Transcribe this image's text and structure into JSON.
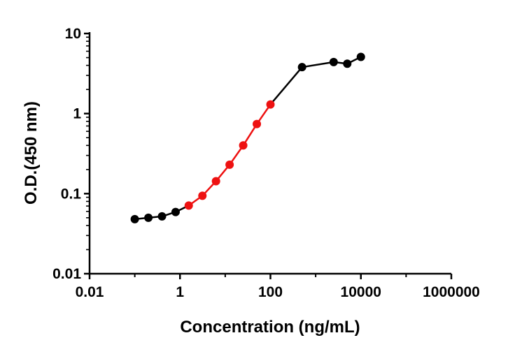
{
  "chart_data": {
    "type": "line",
    "title": "",
    "xlabel": "Concentration (ng/mL)",
    "ylabel": "O.D.(450 nm)",
    "xscale": "log",
    "yscale": "log",
    "xlim": [
      0.01,
      1000000
    ],
    "ylim": [
      0.01,
      10
    ],
    "x_ticks": [
      0.01,
      1,
      100,
      10000,
      1000000
    ],
    "x_tick_labels": [
      "0.01",
      "1",
      "100",
      "10000",
      "1000000"
    ],
    "y_ticks": [
      0.01,
      0.1,
      1,
      10
    ],
    "y_tick_labels": [
      "0.01",
      "0.1",
      "1",
      "10"
    ],
    "grid": false,
    "legend": "none",
    "series": [
      {
        "color": "#000000",
        "points": [
          {
            "x": 0.1,
            "y": 0.048
          },
          {
            "x": 0.2,
            "y": 0.05
          },
          {
            "x": 0.4,
            "y": 0.052
          },
          {
            "x": 0.8,
            "y": 0.059
          },
          {
            "x": 500,
            "y": 3.8
          },
          {
            "x": 2500,
            "y": 4.4
          },
          {
            "x": 5000,
            "y": 4.2
          },
          {
            "x": 10000,
            "y": 5.1
          }
        ]
      },
      {
        "color": "#ee1111",
        "points": [
          {
            "x": 1.56,
            "y": 0.071
          },
          {
            "x": 3.13,
            "y": 0.094
          },
          {
            "x": 6.25,
            "y": 0.143
          },
          {
            "x": 12.5,
            "y": 0.23
          },
          {
            "x": 25,
            "y": 0.4
          },
          {
            "x": 50,
            "y": 0.74
          },
          {
            "x": 100,
            "y": 1.3
          }
        ]
      }
    ],
    "line_path": [
      {
        "x": 0.1,
        "y": 0.048,
        "seg_color": "#000000"
      },
      {
        "x": 0.2,
        "y": 0.05,
        "seg_color": "#000000"
      },
      {
        "x": 0.4,
        "y": 0.052,
        "seg_color": "#000000"
      },
      {
        "x": 0.8,
        "y": 0.059,
        "seg_color": "#000000"
      },
      {
        "x": 1.56,
        "y": 0.071,
        "seg_color": "#000000"
      },
      {
        "x": 3.13,
        "y": 0.094,
        "seg_color": "#ee1111"
      },
      {
        "x": 6.25,
        "y": 0.143,
        "seg_color": "#ee1111"
      },
      {
        "x": 12.5,
        "y": 0.23,
        "seg_color": "#ee1111"
      },
      {
        "x": 25,
        "y": 0.4,
        "seg_color": "#ee1111"
      },
      {
        "x": 50,
        "y": 0.74,
        "seg_color": "#ee1111"
      },
      {
        "x": 100,
        "y": 1.3,
        "seg_color": "#ee1111"
      },
      {
        "x": 500,
        "y": 3.8,
        "seg_color": "#000000"
      },
      {
        "x": 2500,
        "y": 4.4,
        "seg_color": "#000000"
      },
      {
        "x": 5000,
        "y": 4.2,
        "seg_color": "#000000"
      },
      {
        "x": 10000,
        "y": 5.1,
        "seg_color": "#000000"
      }
    ]
  }
}
